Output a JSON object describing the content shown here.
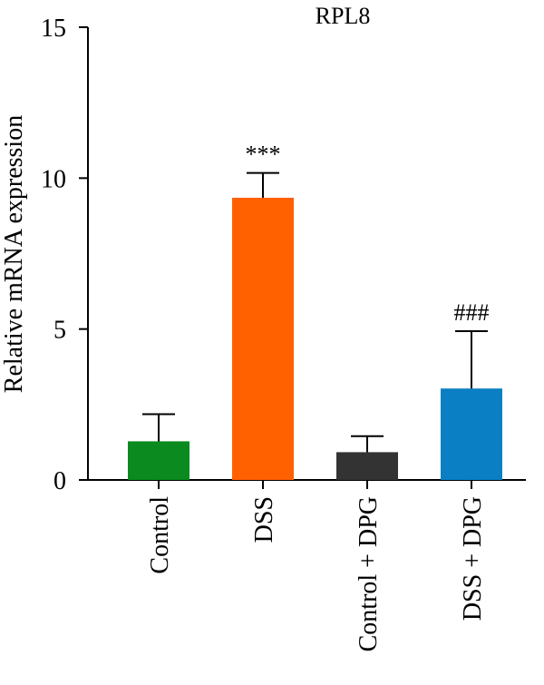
{
  "chart_data": {
    "type": "bar",
    "title": "RPL8",
    "xlabel": "",
    "ylabel": "Relative mRNA expression",
    "ylim": [
      0,
      15
    ],
    "yticks": [
      0,
      5,
      10,
      15
    ],
    "grid": false,
    "categories": [
      "Control",
      "DSS",
      "Control + DPG",
      "DSS + DPG"
    ],
    "values": [
      1.28,
      9.35,
      0.92,
      3.03
    ],
    "errors": [
      0.9,
      0.82,
      0.53,
      1.9
    ],
    "colors": [
      "#0a8a1f",
      "#ff6000",
      "#333333",
      "#0a7fc3"
    ],
    "annotations": [
      "",
      "***",
      "",
      "###"
    ]
  }
}
